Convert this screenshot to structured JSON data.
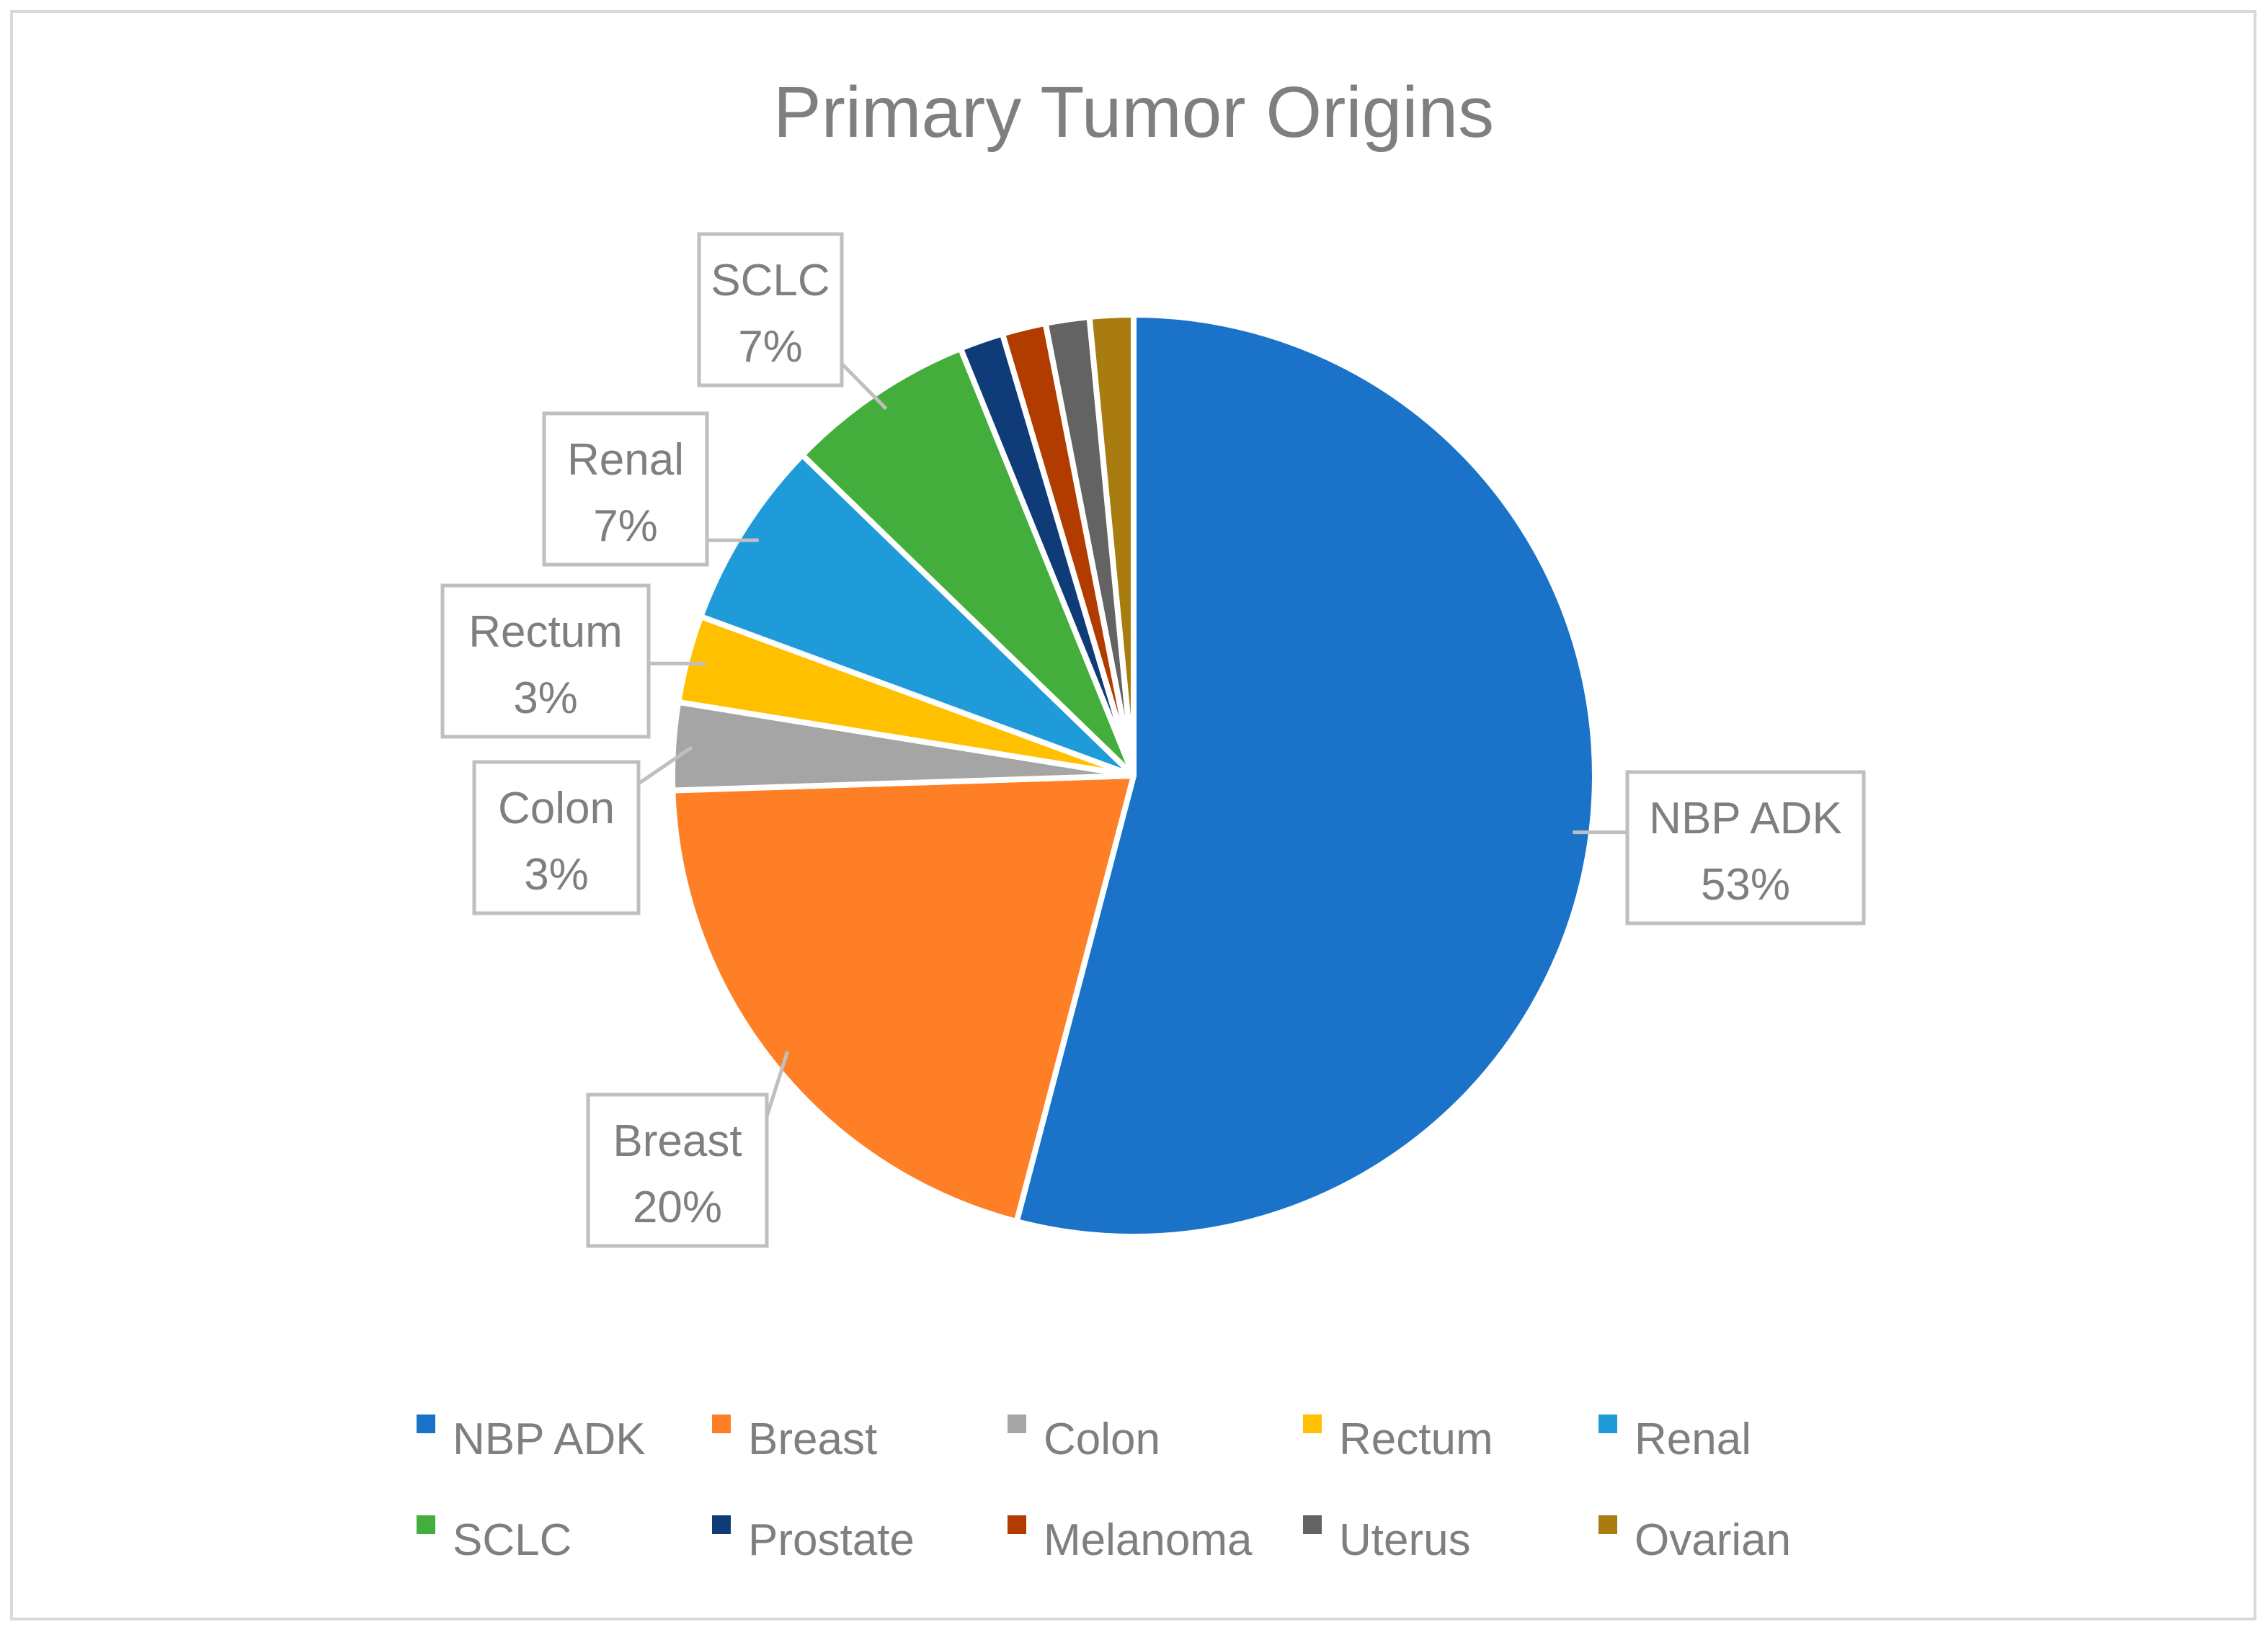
{
  "chart_data": {
    "type": "pie",
    "title": "Primary Tumor Origins",
    "slices": [
      {
        "name": "NBP ADK",
        "value": 53.0,
        "label": "53%",
        "color": "#1a73c8",
        "callout": true
      },
      {
        "name": "Breast",
        "value": 20.0,
        "label": "20%",
        "color": "#ff7f27",
        "callout": true
      },
      {
        "name": "Colon",
        "value": 3.0,
        "label": "3%",
        "color": "#a5a5a5",
        "callout": true
      },
      {
        "name": "Rectum",
        "value": 3.0,
        "label": "3%",
        "color": "#ffc000",
        "callout": true
      },
      {
        "name": "Renal",
        "value": 6.5,
        "label": "7%",
        "color": "#1f9bd9",
        "callout": true
      },
      {
        "name": "SCLC",
        "value": 6.5,
        "label": "7%",
        "color": "#44ae3c",
        "callout": true
      },
      {
        "name": "Prostate",
        "value": 1.5,
        "label": "",
        "color": "#0f3c78",
        "callout": false
      },
      {
        "name": "Melanoma",
        "value": 1.5,
        "label": "",
        "color": "#b23c00",
        "callout": false
      },
      {
        "name": "Uterus",
        "value": 1.5,
        "label": "",
        "color": "#636363",
        "callout": false
      },
      {
        "name": "Ovarian",
        "value": 1.5,
        "label": "",
        "color": "#a97c12",
        "callout": false
      }
    ],
    "legend": {
      "position": "bottom",
      "items": [
        "NBP ADK",
        "Breast",
        "Colon",
        "Rectum",
        "Renal",
        "SCLC",
        "Prostate",
        "Melanoma",
        "Uterus",
        "Ovarian"
      ]
    }
  }
}
